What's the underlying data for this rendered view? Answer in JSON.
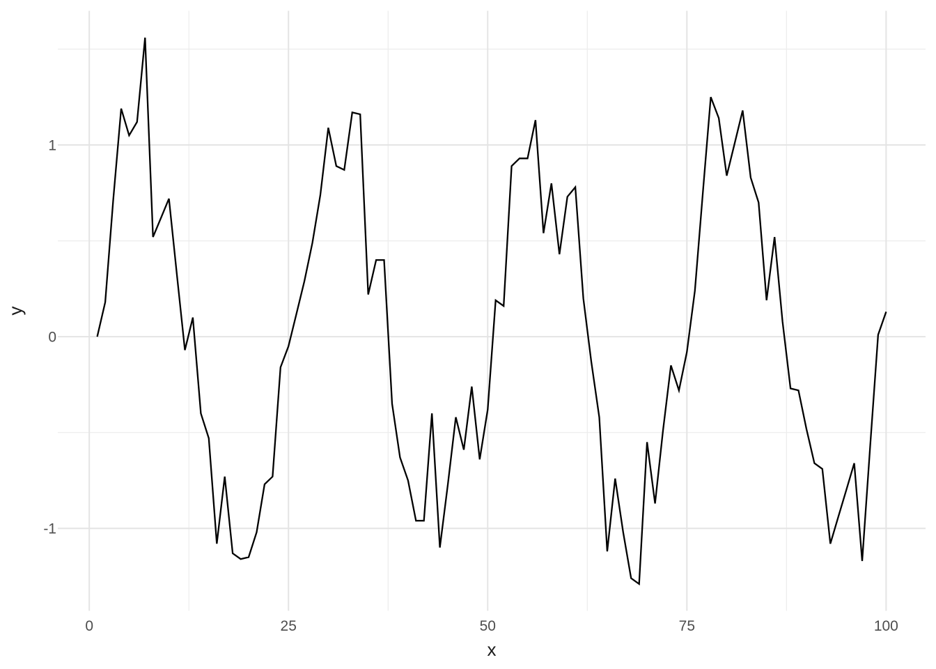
{
  "figure": {
    "background": "#ffffff"
  },
  "chart_data": {
    "type": "line",
    "title": "",
    "xlabel": "x",
    "ylabel": "y",
    "x_ticks": [
      0,
      25,
      50,
      75,
      100
    ],
    "x_tick_labels": [
      "0",
      "25",
      "50",
      "75",
      "100"
    ],
    "y_ticks": [
      -1,
      0,
      1
    ],
    "y_tick_labels": [
      "-1",
      "0",
      "1"
    ],
    "x_minor_ticks": [
      12.5,
      37.5,
      62.5,
      87.5
    ],
    "y_minor_ticks": [
      -0.5,
      0.5,
      1.5
    ],
    "xlim": [
      -3.95,
      104.95
    ],
    "ylim": [
      -1.43,
      1.7
    ],
    "grid": "on",
    "legend": "none",
    "line_color": "#000000",
    "grid_major_color": "#e4e4e4",
    "grid_minor_color": "#ececec",
    "tick_label_color": "#4d4d4d",
    "axis_title_color": "#1a1a1a",
    "x": [
      1,
      2,
      3,
      4,
      5,
      6,
      7,
      8,
      9,
      10,
      11,
      12,
      13,
      14,
      15,
      16,
      17,
      18,
      19,
      20,
      21,
      22,
      23,
      24,
      25,
      26,
      27,
      28,
      29,
      30,
      31,
      32,
      33,
      34,
      35,
      36,
      37,
      38,
      39,
      40,
      41,
      42,
      43,
      44,
      45,
      46,
      47,
      48,
      49,
      50,
      51,
      52,
      53,
      54,
      55,
      56,
      57,
      58,
      59,
      60,
      61,
      62,
      63,
      64,
      65,
      66,
      67,
      68,
      69,
      70,
      71,
      72,
      73,
      74,
      75,
      76,
      77,
      78,
      79,
      80,
      81,
      82,
      83,
      84,
      85,
      86,
      87,
      88,
      89,
      90,
      91,
      92,
      93,
      94,
      95,
      96,
      97,
      98,
      99,
      100
    ],
    "y": [
      0.0,
      0.18,
      0.71,
      1.19,
      1.05,
      1.12,
      1.56,
      0.52,
      0.62,
      0.72,
      0.32,
      -0.07,
      0.1,
      -0.4,
      -0.53,
      -1.08,
      -0.73,
      -1.13,
      -1.16,
      -1.15,
      -1.02,
      -0.77,
      -0.73,
      -0.16,
      -0.05,
      0.12,
      0.29,
      0.49,
      0.74,
      1.09,
      0.89,
      0.87,
      1.17,
      1.16,
      0.22,
      0.4,
      0.4,
      -0.35,
      -0.63,
      -0.75,
      -0.96,
      -0.96,
      -0.4,
      -1.1,
      -0.77,
      -0.42,
      -0.59,
      -0.26,
      -0.64,
      -0.38,
      0.19,
      0.16,
      0.89,
      0.93,
      0.93,
      1.13,
      0.54,
      0.8,
      0.43,
      0.73,
      0.78,
      0.2,
      -0.13,
      -0.42,
      -1.12,
      -0.74,
      -1.02,
      -1.26,
      -1.29,
      -0.55,
      -0.87,
      -0.49,
      -0.15,
      -0.28,
      -0.08,
      0.24,
      0.75,
      1.25,
      1.14,
      0.84,
      1.01,
      1.18,
      0.83,
      0.7,
      0.19,
      0.52,
      0.08,
      -0.27,
      -0.28,
      -0.48,
      -0.66,
      -0.69,
      -1.08,
      -0.94,
      -0.8,
      -0.66,
      -1.17,
      -0.57,
      0.01,
      0.13
    ]
  }
}
